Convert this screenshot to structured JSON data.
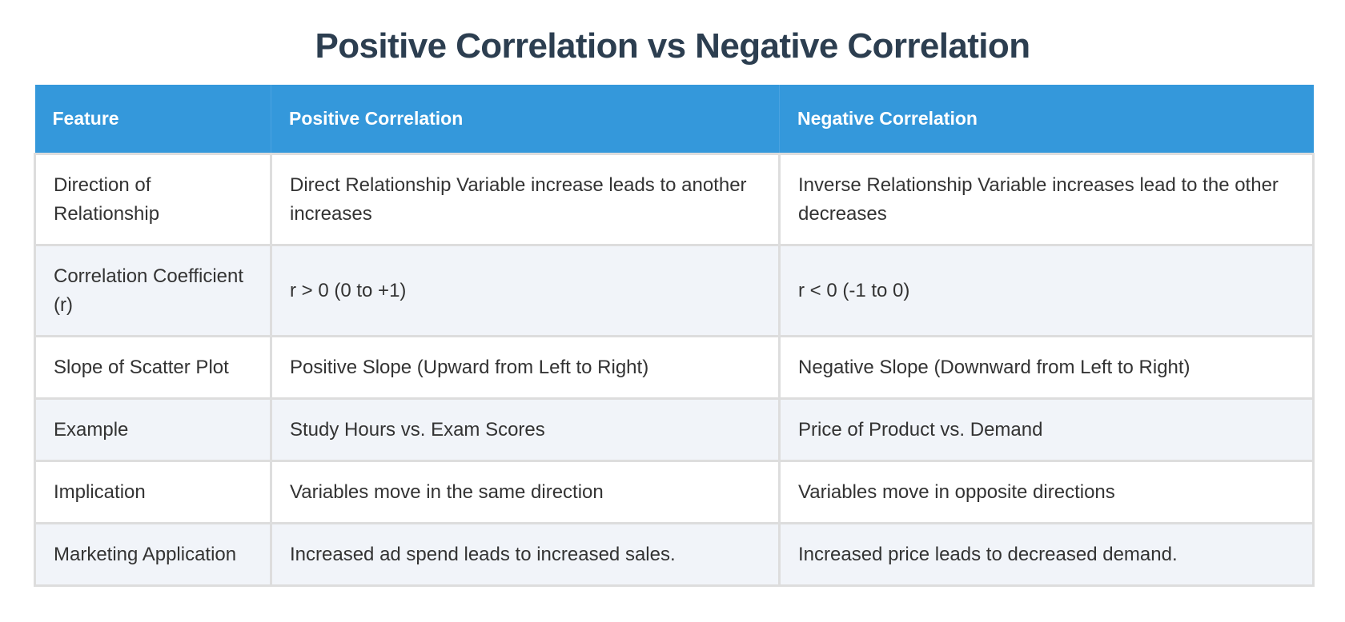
{
  "title": "Positive Correlation vs Negative Correlation",
  "colors": {
    "header_bg": "#3498db",
    "title": "#2c3e50",
    "alt_row": "#f1f4f9"
  },
  "table": {
    "headers": [
      "Feature",
      "Positive Correlation",
      "Negative Correlation"
    ],
    "rows": [
      [
        "Direction of Relationship",
        "Direct Relationship Variable increase leads to another increases",
        "Inverse Relationship Variable increases lead to the other decreases"
      ],
      [
        "Correlation Coefficient (r)",
        "r > 0 (0 to +1)",
        "r < 0 (-1 to 0)"
      ],
      [
        "Slope of Scatter Plot",
        "Positive Slope (Upward from Left to Right)",
        "Negative Slope (Downward from Left to Right)"
      ],
      [
        "Example",
        "Study Hours vs. Exam Scores",
        "Price of Product vs. Demand"
      ],
      [
        "Implication",
        "Variables move in the same direction",
        "Variables move in opposite directions"
      ],
      [
        "Marketing Application",
        "Increased ad spend leads to increased sales.",
        "Increased price leads to decreased demand."
      ]
    ]
  }
}
